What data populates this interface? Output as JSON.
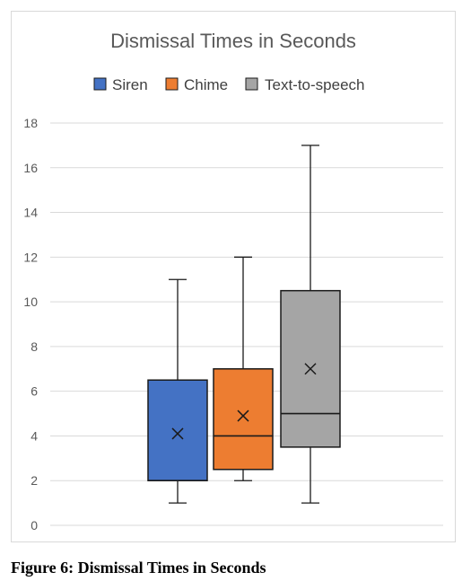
{
  "caption": "Figure 6: Dismissal Times in Seconds",
  "chart_data": {
    "type": "box",
    "title": "Dismissal Times in Seconds",
    "xlabel": "",
    "ylabel": "",
    "ylim": [
      0,
      18
    ],
    "y_ticks": [
      "0",
      "2",
      "4",
      "6",
      "8",
      "10",
      "12",
      "14",
      "16",
      "18"
    ],
    "grid": true,
    "legend_position": "top",
    "series": [
      {
        "name": "Siren",
        "color": "#4472c4",
        "min": 1,
        "q1": 2,
        "median": 2,
        "q3": 6.5,
        "max": 11,
        "mean": 4.1
      },
      {
        "name": "Chime",
        "color": "#ed7d31",
        "min": 2,
        "q1": 2.5,
        "median": 4,
        "q3": 7,
        "max": 12,
        "mean": 4.9
      },
      {
        "name": "Text-to-speech",
        "color": "#a5a5a5",
        "min": 1,
        "q1": 3.5,
        "median": 5,
        "q3": 10.5,
        "max": 17,
        "mean": 7
      }
    ]
  }
}
